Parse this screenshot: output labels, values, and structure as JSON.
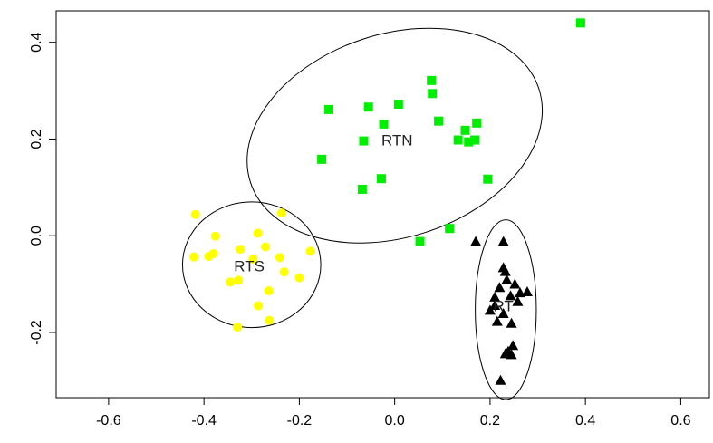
{
  "chart_data": {
    "type": "scatter",
    "title": "",
    "xlabel": "",
    "ylabel": "",
    "xlim": [
      -0.71,
      0.66
    ],
    "ylim": [
      -0.335,
      0.465
    ],
    "x_ticks": [
      -0.6,
      -0.4,
      -0.2,
      0.0,
      0.2,
      0.4,
      0.6
    ],
    "y_ticks": [
      -0.2,
      0.0,
      0.2,
      0.4
    ],
    "x_tick_labels": [
      "-0.6",
      "-0.4",
      "-0.2",
      "0.0",
      "0.2",
      "0.4",
      "0.6"
    ],
    "y_tick_labels": [
      "-0.2",
      "0.0",
      "0.2",
      "0.4"
    ],
    "grid": false,
    "series": [
      {
        "label": "RTN",
        "marker": "square",
        "color": "#00ee00",
        "points": [
          [
            0.39,
            0.44
          ],
          [
            0.077,
            0.321
          ],
          [
            0.079,
            0.294
          ],
          [
            0.008,
            0.272
          ],
          [
            -0.055,
            0.266
          ],
          [
            -0.138,
            0.261
          ],
          [
            0.092,
            0.237
          ],
          [
            0.172,
            0.233
          ],
          [
            -0.023,
            0.231
          ],
          [
            0.148,
            0.218
          ],
          [
            0.133,
            0.198
          ],
          [
            0.168,
            0.198
          ],
          [
            0.155,
            0.194
          ],
          [
            -0.065,
            0.196
          ],
          [
            -0.153,
            0.158
          ],
          [
            0.195,
            0.117
          ],
          [
            -0.028,
            0.118
          ],
          [
            -0.068,
            0.096
          ],
          [
            0.115,
            0.015
          ],
          [
            0.053,
            -0.012
          ]
        ]
      },
      {
        "label": "RTS",
        "marker": "circle",
        "color": "#ffff00",
        "points": [
          [
            -0.418,
            0.044
          ],
          [
            -0.237,
            0.047
          ],
          [
            -0.287,
            0.005
          ],
          [
            -0.376,
            -0.001
          ],
          [
            -0.271,
            -0.023
          ],
          [
            -0.324,
            -0.028
          ],
          [
            -0.177,
            -0.032
          ],
          [
            -0.38,
            -0.037
          ],
          [
            -0.39,
            -0.043
          ],
          [
            -0.421,
            -0.044
          ],
          [
            -0.241,
            -0.045
          ],
          [
            -0.297,
            -0.048
          ],
          [
            -0.232,
            -0.075
          ],
          [
            -0.2,
            -0.087
          ],
          [
            -0.328,
            -0.092
          ],
          [
            -0.345,
            -0.096
          ],
          [
            -0.264,
            -0.114
          ],
          [
            -0.286,
            -0.145
          ],
          [
            -0.263,
            -0.175
          ],
          [
            -0.33,
            -0.189
          ]
        ]
      },
      {
        "label": "RT",
        "marker": "triangle",
        "color": "#000000",
        "points": [
          [
            0.17,
            -0.013
          ],
          [
            0.228,
            -0.013
          ],
          [
            0.228,
            -0.067
          ],
          [
            0.232,
            -0.075
          ],
          [
            0.235,
            -0.092
          ],
          [
            0.252,
            -0.101
          ],
          [
            0.22,
            -0.108
          ],
          [
            0.278,
            -0.117
          ],
          [
            0.263,
            -0.119
          ],
          [
            0.243,
            -0.125
          ],
          [
            0.21,
            -0.128
          ],
          [
            0.258,
            -0.137
          ],
          [
            0.21,
            -0.145
          ],
          [
            0.2,
            -0.155
          ],
          [
            0.228,
            -0.162
          ],
          [
            0.215,
            -0.178
          ],
          [
            0.245,
            -0.182
          ],
          [
            0.248,
            -0.228
          ],
          [
            0.238,
            -0.24
          ],
          [
            0.232,
            -0.245
          ],
          [
            0.245,
            -0.247
          ],
          [
            0.222,
            -0.3
          ]
        ]
      }
    ],
    "ellipses": [
      {
        "label": "RTN",
        "cx": 0.0,
        "cy": 0.207,
        "rx_units": 0.318,
        "ry_units": 0.21,
        "angle_deg": -18
      },
      {
        "label": "RTS",
        "cx": -0.3,
        "cy": -0.06,
        "rx_units": 0.145,
        "ry_units": 0.13,
        "angle_deg": 0
      },
      {
        "label": "RT",
        "cx": 0.233,
        "cy": -0.153,
        "rx_units": 0.064,
        "ry_units": 0.186,
        "angle_deg": 0
      }
    ],
    "ellipse_labels": [
      {
        "text": "RTN",
        "x": 0.005,
        "y": 0.195
      },
      {
        "text": "RTS",
        "x": -0.305,
        "y": -0.065
      },
      {
        "text": "RT",
        "x": 0.228,
        "y": -0.148
      }
    ]
  }
}
